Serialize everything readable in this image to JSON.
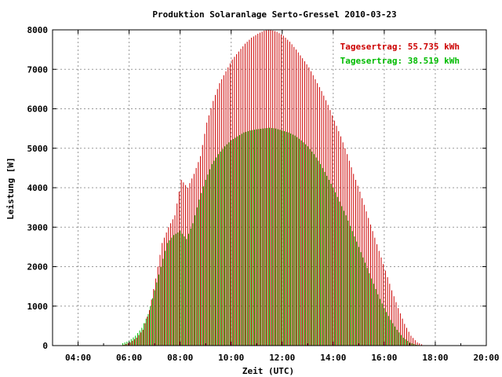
{
  "chart_data": {
    "type": "bar",
    "title": "Produktion Solaranlage Serto-Gressel 2010-03-23",
    "xlabel": "Zeit (UTC)",
    "ylabel": "Leistung [W]",
    "x_unit": "hour",
    "xlim": [
      3,
      20
    ],
    "ylim": [
      0,
      8000
    ],
    "x_tick_labels": [
      "04:00",
      "06:00",
      "08:00",
      "10:00",
      "12:00",
      "14:00",
      "16:00",
      "18:00",
      "20:00"
    ],
    "y_tick_labels": [
      "0",
      "1000",
      "2000",
      "3000",
      "4000",
      "5000",
      "6000",
      "7000",
      "8000"
    ],
    "grid": true,
    "legend_position": "top-right",
    "series": [
      {
        "name": "Tagesertrag: 55.735 kWh",
        "color": "#cc0000",
        "x": [
          5.75,
          6.0,
          6.25,
          6.5,
          6.75,
          7.0,
          7.25,
          7.5,
          7.75,
          8.0,
          8.25,
          8.5,
          8.75,
          9.0,
          9.25,
          9.5,
          9.75,
          10.0,
          10.25,
          10.5,
          10.75,
          11.0,
          11.25,
          11.5,
          11.75,
          12.0,
          12.25,
          12.5,
          12.75,
          13.0,
          13.25,
          13.5,
          13.75,
          14.0,
          14.25,
          14.5,
          14.75,
          15.0,
          15.25,
          15.5,
          15.75,
          16.0,
          16.25,
          16.5,
          16.75,
          17.0,
          17.25,
          17.5
        ],
        "values": [
          20,
          80,
          200,
          400,
          900,
          1700,
          2600,
          3000,
          3300,
          4200,
          4000,
          4350,
          4800,
          5650,
          6200,
          6650,
          6950,
          7250,
          7450,
          7650,
          7800,
          7900,
          7980,
          8000,
          7950,
          7850,
          7700,
          7500,
          7280,
          7050,
          6750,
          6450,
          6100,
          5700,
          5300,
          4850,
          4350,
          3900,
          3400,
          2900,
          2400,
          1900,
          1400,
          950,
          550,
          250,
          80,
          10
        ]
      },
      {
        "name": "Tagesertrag: 38.519 kWh",
        "color": "#00bb00",
        "x": [
          5.75,
          6.0,
          6.25,
          6.5,
          6.75,
          7.0,
          7.25,
          7.5,
          7.75,
          8.0,
          8.25,
          8.5,
          8.75,
          9.0,
          9.25,
          9.5,
          9.75,
          10.0,
          10.25,
          10.5,
          10.75,
          11.0,
          11.25,
          11.5,
          11.75,
          12.0,
          12.25,
          12.5,
          12.75,
          13.0,
          13.25,
          13.5,
          13.75,
          14.0,
          14.25,
          14.5,
          14.75,
          15.0,
          15.25,
          15.5,
          15.75,
          16.0,
          16.25,
          16.5,
          16.75,
          17.0,
          17.25,
          17.5
        ],
        "values": [
          60,
          120,
          250,
          450,
          800,
          1400,
          2000,
          2600,
          2800,
          2900,
          2700,
          3100,
          3700,
          4200,
          4600,
          4850,
          5050,
          5200,
          5300,
          5400,
          5450,
          5480,
          5500,
          5520,
          5500,
          5450,
          5400,
          5320,
          5200,
          5050,
          4850,
          4600,
          4300,
          4000,
          3650,
          3300,
          2900,
          2500,
          2100,
          1700,
          1300,
          950,
          650,
          400,
          200,
          80,
          20,
          5
        ]
      }
    ]
  }
}
